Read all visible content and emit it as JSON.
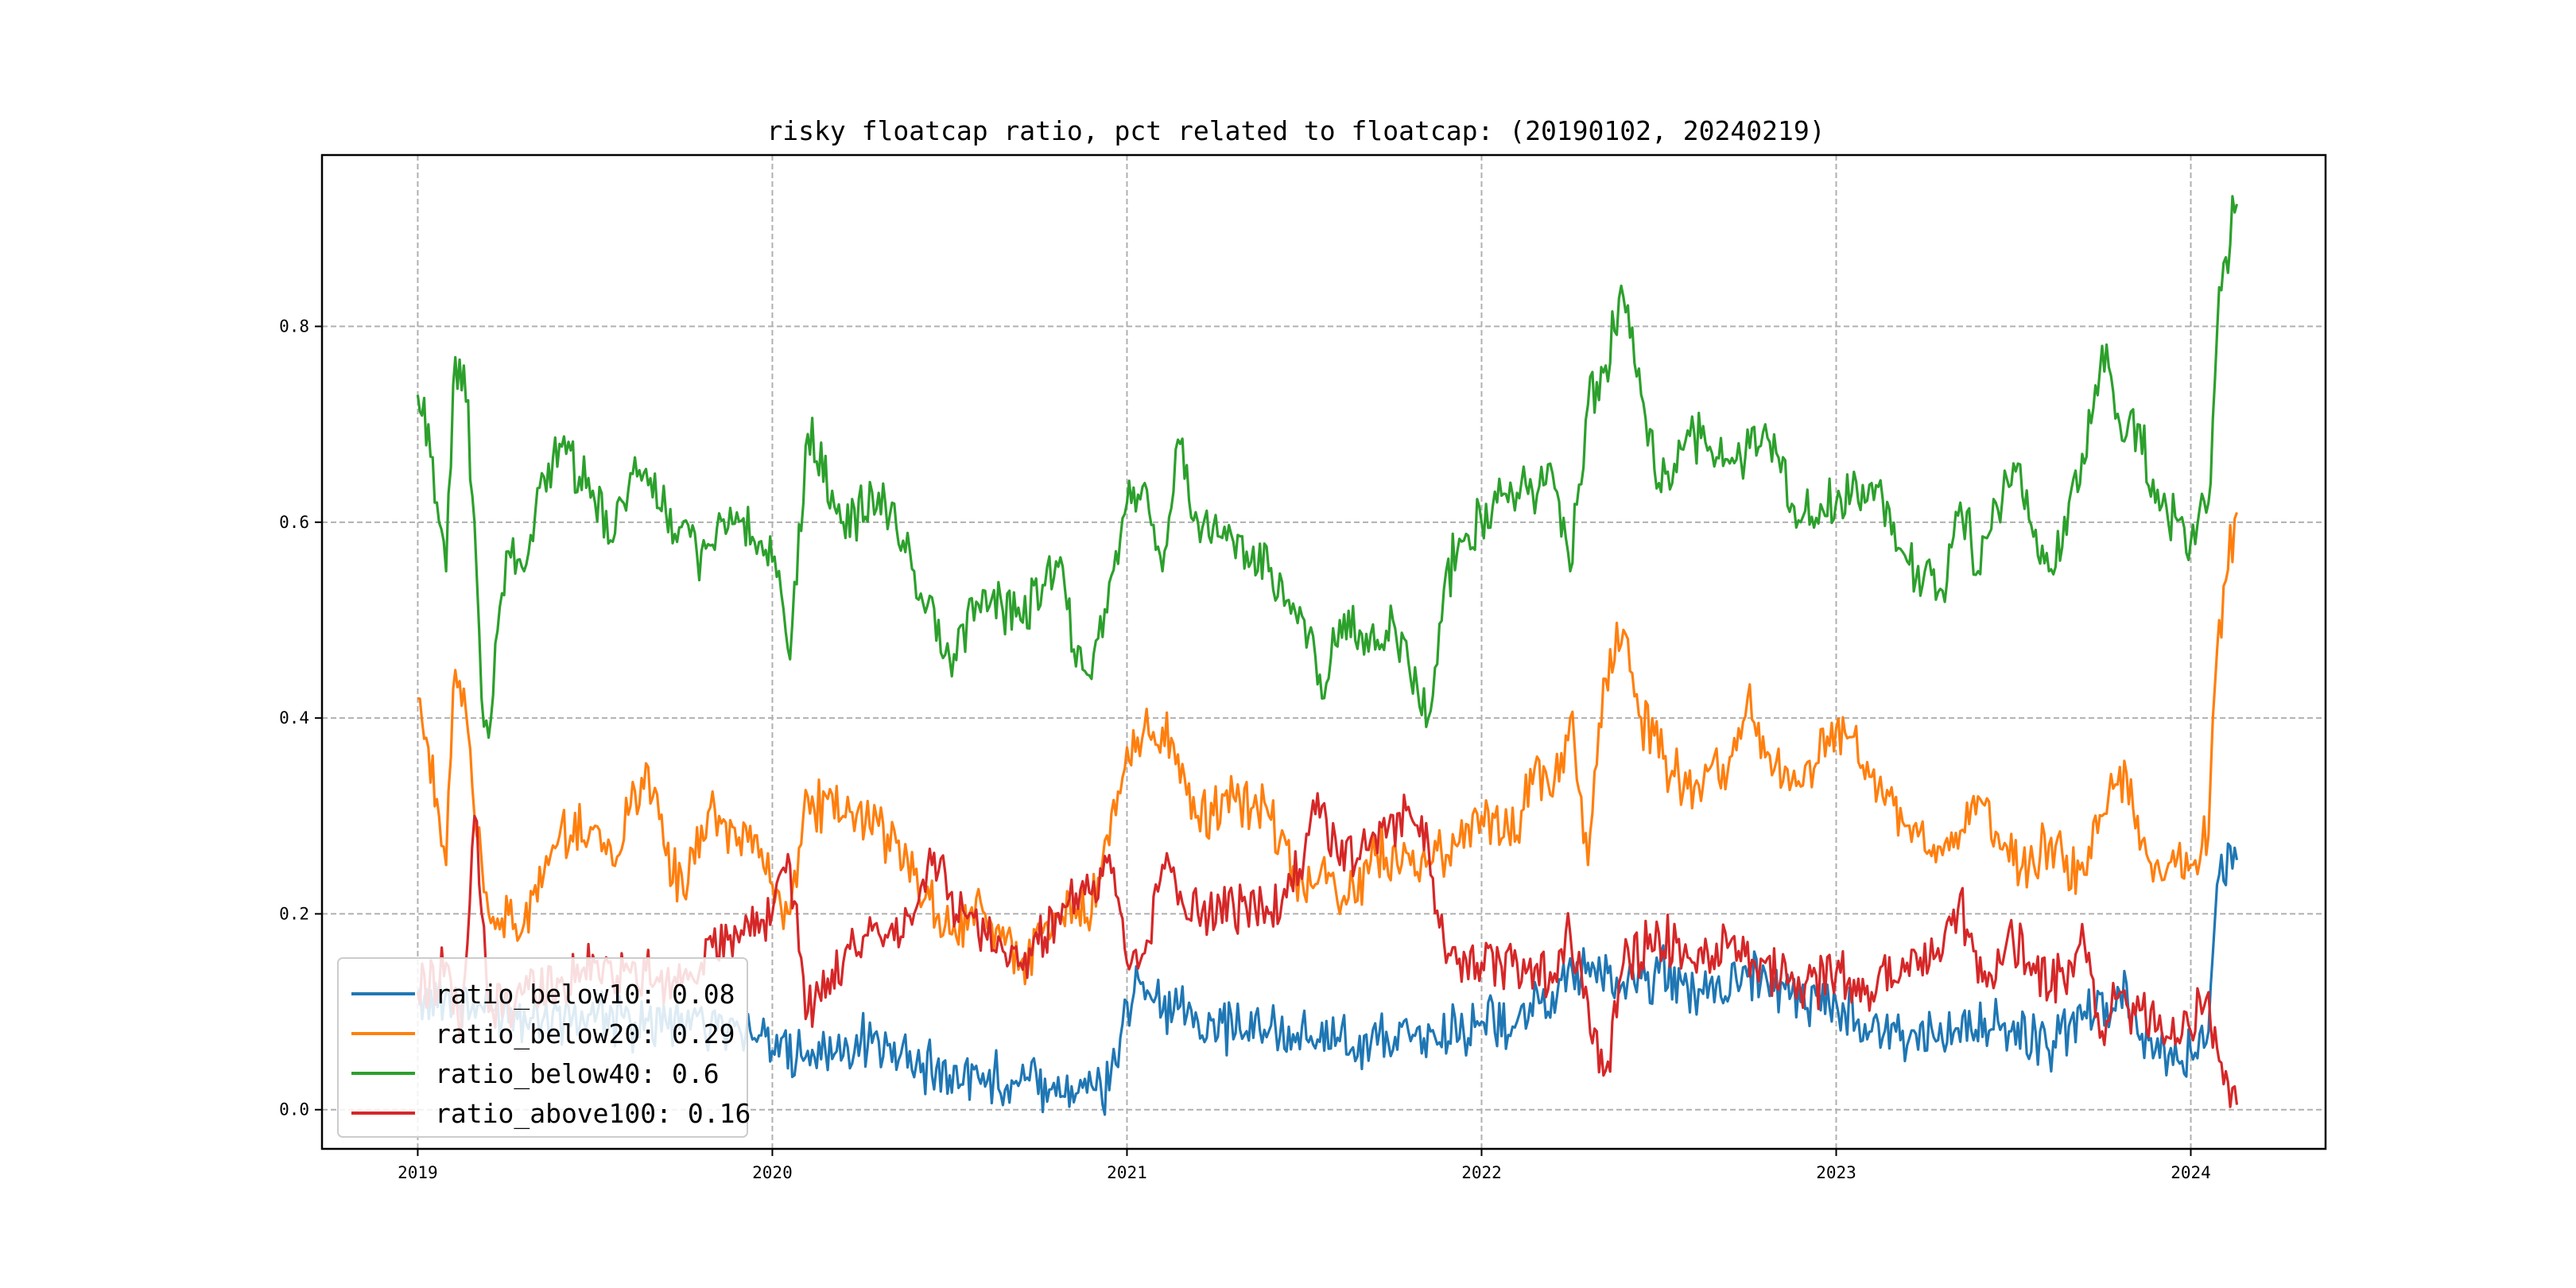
{
  "chart_data": {
    "type": "line",
    "title": "risky floatcap ratio, pct related to floatcap: (20190102, 20240219)",
    "xlabel": "",
    "ylabel": "",
    "x_range": [
      2018.73,
      2024.38
    ],
    "ylim": [
      -0.04,
      0.975
    ],
    "x_ticks": [
      {
        "value": 2019.0,
        "label": "2019"
      },
      {
        "value": 2020.0,
        "label": "2020"
      },
      {
        "value": 2021.0,
        "label": "2021"
      },
      {
        "value": 2022.0,
        "label": "2022"
      },
      {
        "value": 2023.0,
        "label": "2023"
      },
      {
        "value": 2024.0,
        "label": "2024"
      }
    ],
    "y_ticks": [
      {
        "value": 0.0,
        "label": "0.0"
      },
      {
        "value": 0.2,
        "label": "0.2"
      },
      {
        "value": 0.4,
        "label": "0.4"
      },
      {
        "value": 0.6,
        "label": "0.6"
      },
      {
        "value": 0.8,
        "label": "0.8"
      }
    ],
    "grid": true,
    "legend_position": "lower-left",
    "series": [
      {
        "name": "ratio_below10",
        "legend_label": "ratio_below10: 0.08",
        "color": "#1f77b4",
        "points": [
          [
            2019.0,
            0.12
          ],
          [
            2019.1,
            0.11
          ],
          [
            2019.2,
            0.1
          ],
          [
            2019.3,
            0.1
          ],
          [
            2019.5,
            0.09
          ],
          [
            2019.7,
            0.09
          ],
          [
            2019.9,
            0.09
          ],
          [
            2020.0,
            0.06
          ],
          [
            2020.1,
            0.06
          ],
          [
            2020.3,
            0.07
          ],
          [
            2020.5,
            0.035
          ],
          [
            2020.7,
            0.03
          ],
          [
            2020.9,
            0.025
          ],
          [
            2020.95,
            0.02
          ],
          [
            2021.0,
            0.11
          ],
          [
            2021.02,
            0.12
          ],
          [
            2021.2,
            0.09
          ],
          [
            2021.4,
            0.08
          ],
          [
            2021.6,
            0.07
          ],
          [
            2021.8,
            0.07
          ],
          [
            2022.0,
            0.09
          ],
          [
            2022.1,
            0.09
          ],
          [
            2022.2,
            0.12
          ],
          [
            2022.3,
            0.15
          ],
          [
            2022.4,
            0.13
          ],
          [
            2022.5,
            0.14
          ],
          [
            2022.6,
            0.12
          ],
          [
            2022.8,
            0.14
          ],
          [
            2022.9,
            0.11
          ],
          [
            2023.0,
            0.11
          ],
          [
            2023.1,
            0.08
          ],
          [
            2023.3,
            0.07
          ],
          [
            2023.5,
            0.09
          ],
          [
            2023.6,
            0.06
          ],
          [
            2023.7,
            0.1
          ],
          [
            2023.8,
            0.12
          ],
          [
            2023.9,
            0.06
          ],
          [
            2024.0,
            0.06
          ],
          [
            2024.05,
            0.08
          ],
          [
            2024.08,
            0.24
          ],
          [
            2024.13,
            0.255
          ]
        ]
      },
      {
        "name": "ratio_below20",
        "legend_label": "ratio_below20: 0.29",
        "color": "#ff7f0e",
        "points": [
          [
            2019.0,
            0.42
          ],
          [
            2019.03,
            0.37
          ],
          [
            2019.06,
            0.3
          ],
          [
            2019.08,
            0.25
          ],
          [
            2019.1,
            0.43
          ],
          [
            2019.13,
            0.43
          ],
          [
            2019.16,
            0.3
          ],
          [
            2019.2,
            0.2
          ],
          [
            2019.3,
            0.19
          ],
          [
            2019.4,
            0.28
          ],
          [
            2019.5,
            0.29
          ],
          [
            2019.55,
            0.25
          ],
          [
            2019.6,
            0.31
          ],
          [
            2019.65,
            0.35
          ],
          [
            2019.7,
            0.26
          ],
          [
            2019.75,
            0.22
          ],
          [
            2019.8,
            0.29
          ],
          [
            2019.85,
            0.3
          ],
          [
            2019.9,
            0.27
          ],
          [
            2019.95,
            0.28
          ],
          [
            2020.0,
            0.23
          ],
          [
            2020.05,
            0.2
          ],
          [
            2020.1,
            0.32
          ],
          [
            2020.2,
            0.3
          ],
          [
            2020.3,
            0.29
          ],
          [
            2020.4,
            0.24
          ],
          [
            2020.5,
            0.18
          ],
          [
            2020.6,
            0.2
          ],
          [
            2020.7,
            0.15
          ],
          [
            2020.8,
            0.2
          ],
          [
            2020.9,
            0.2
          ],
          [
            2021.0,
            0.37
          ],
          [
            2021.03,
            0.38
          ],
          [
            2021.1,
            0.39
          ],
          [
            2021.2,
            0.3
          ],
          [
            2021.3,
            0.32
          ],
          [
            2021.4,
            0.3
          ],
          [
            2021.5,
            0.22
          ],
          [
            2021.55,
            0.25
          ],
          [
            2021.6,
            0.2
          ],
          [
            2021.7,
            0.26
          ],
          [
            2021.8,
            0.25
          ],
          [
            2021.9,
            0.26
          ],
          [
            2022.0,
            0.3
          ],
          [
            2022.1,
            0.28
          ],
          [
            2022.15,
            0.35
          ],
          [
            2022.2,
            0.32
          ],
          [
            2022.25,
            0.4
          ],
          [
            2022.3,
            0.25
          ],
          [
            2022.35,
            0.44
          ],
          [
            2022.4,
            0.49
          ],
          [
            2022.45,
            0.4
          ],
          [
            2022.5,
            0.36
          ],
          [
            2022.6,
            0.33
          ],
          [
            2022.7,
            0.36
          ],
          [
            2022.75,
            0.42
          ],
          [
            2022.8,
            0.36
          ],
          [
            2022.9,
            0.33
          ],
          [
            2023.0,
            0.39
          ],
          [
            2023.1,
            0.34
          ],
          [
            2023.2,
            0.29
          ],
          [
            2023.3,
            0.26
          ],
          [
            2023.4,
            0.32
          ],
          [
            2023.5,
            0.25
          ],
          [
            2023.6,
            0.27
          ],
          [
            2023.7,
            0.24
          ],
          [
            2023.75,
            0.3
          ],
          [
            2023.8,
            0.35
          ],
          [
            2023.85,
            0.3
          ],
          [
            2023.9,
            0.25
          ],
          [
            2024.0,
            0.25
          ],
          [
            2024.05,
            0.28
          ],
          [
            2024.08,
            0.5
          ],
          [
            2024.13,
            0.61
          ]
        ]
      },
      {
        "name": "ratio_below40",
        "legend_label": "ratio_below40: 0.6",
        "color": "#2ca02c",
        "points": [
          [
            2019.0,
            0.73
          ],
          [
            2019.03,
            0.7
          ],
          [
            2019.06,
            0.6
          ],
          [
            2019.08,
            0.55
          ],
          [
            2019.1,
            0.74
          ],
          [
            2019.13,
            0.76
          ],
          [
            2019.16,
            0.6
          ],
          [
            2019.18,
            0.42
          ],
          [
            2019.2,
            0.38
          ],
          [
            2019.25,
            0.57
          ],
          [
            2019.3,
            0.55
          ],
          [
            2019.35,
            0.65
          ],
          [
            2019.4,
            0.68
          ],
          [
            2019.5,
            0.62
          ],
          [
            2019.55,
            0.58
          ],
          [
            2019.6,
            0.65
          ],
          [
            2019.7,
            0.61
          ],
          [
            2019.8,
            0.57
          ],
          [
            2019.9,
            0.61
          ],
          [
            2019.95,
            0.58
          ],
          [
            2020.0,
            0.56
          ],
          [
            2020.05,
            0.46
          ],
          [
            2020.1,
            0.69
          ],
          [
            2020.2,
            0.6
          ],
          [
            2020.3,
            0.63
          ],
          [
            2020.4,
            0.55
          ],
          [
            2020.5,
            0.46
          ],
          [
            2020.6,
            0.53
          ],
          [
            2020.7,
            0.5
          ],
          [
            2020.8,
            0.56
          ],
          [
            2020.85,
            0.47
          ],
          [
            2020.9,
            0.44
          ],
          [
            2021.0,
            0.62
          ],
          [
            2021.05,
            0.64
          ],
          [
            2021.1,
            0.55
          ],
          [
            2021.15,
            0.68
          ],
          [
            2021.2,
            0.6
          ],
          [
            2021.3,
            0.58
          ],
          [
            2021.4,
            0.55
          ],
          [
            2021.5,
            0.5
          ],
          [
            2021.55,
            0.42
          ],
          [
            2021.6,
            0.5
          ],
          [
            2021.7,
            0.47
          ],
          [
            2021.75,
            0.5
          ],
          [
            2021.8,
            0.44
          ],
          [
            2021.85,
            0.4
          ],
          [
            2021.9,
            0.55
          ],
          [
            2022.0,
            0.6
          ],
          [
            2022.1,
            0.63
          ],
          [
            2022.2,
            0.65
          ],
          [
            2022.25,
            0.55
          ],
          [
            2022.3,
            0.72
          ],
          [
            2022.35,
            0.76
          ],
          [
            2022.4,
            0.83
          ],
          [
            2022.45,
            0.73
          ],
          [
            2022.5,
            0.64
          ],
          [
            2022.6,
            0.69
          ],
          [
            2022.7,
            0.66
          ],
          [
            2022.8,
            0.7
          ],
          [
            2022.9,
            0.6
          ],
          [
            2023.0,
            0.62
          ],
          [
            2023.1,
            0.64
          ],
          [
            2023.2,
            0.56
          ],
          [
            2023.3,
            0.53
          ],
          [
            2023.35,
            0.62
          ],
          [
            2023.4,
            0.55
          ],
          [
            2023.5,
            0.66
          ],
          [
            2023.6,
            0.55
          ],
          [
            2023.7,
            0.66
          ],
          [
            2023.75,
            0.78
          ],
          [
            2023.8,
            0.7
          ],
          [
            2023.85,
            0.7
          ],
          [
            2023.9,
            0.62
          ],
          [
            2024.0,
            0.58
          ],
          [
            2024.05,
            0.62
          ],
          [
            2024.08,
            0.84
          ],
          [
            2024.13,
            0.925
          ]
        ]
      },
      {
        "name": "ratio_above100",
        "legend_label": "ratio_above100: 0.16",
        "color": "#d62728",
        "points": [
          [
            2019.0,
            0.12
          ],
          [
            2019.08,
            0.15
          ],
          [
            2019.12,
            0.07
          ],
          [
            2019.16,
            0.3
          ],
          [
            2019.2,
            0.1
          ],
          [
            2019.3,
            0.12
          ],
          [
            2019.4,
            0.13
          ],
          [
            2019.5,
            0.15
          ],
          [
            2019.6,
            0.14
          ],
          [
            2019.7,
            0.13
          ],
          [
            2019.8,
            0.15
          ],
          [
            2019.9,
            0.18
          ],
          [
            2020.0,
            0.2
          ],
          [
            2020.05,
            0.25
          ],
          [
            2020.1,
            0.1
          ],
          [
            2020.2,
            0.15
          ],
          [
            2020.3,
            0.18
          ],
          [
            2020.4,
            0.2
          ],
          [
            2020.45,
            0.25
          ],
          [
            2020.5,
            0.22
          ],
          [
            2020.6,
            0.18
          ],
          [
            2020.7,
            0.15
          ],
          [
            2020.8,
            0.2
          ],
          [
            2020.9,
            0.22
          ],
          [
            2020.95,
            0.26
          ],
          [
            2021.0,
            0.15
          ],
          [
            2021.05,
            0.16
          ],
          [
            2021.1,
            0.25
          ],
          [
            2021.2,
            0.2
          ],
          [
            2021.3,
            0.21
          ],
          [
            2021.4,
            0.2
          ],
          [
            2021.5,
            0.26
          ],
          [
            2021.55,
            0.31
          ],
          [
            2021.6,
            0.25
          ],
          [
            2021.7,
            0.28
          ],
          [
            2021.8,
            0.3
          ],
          [
            2021.85,
            0.27
          ],
          [
            2021.9,
            0.15
          ],
          [
            2022.0,
            0.15
          ],
          [
            2022.1,
            0.15
          ],
          [
            2022.2,
            0.13
          ],
          [
            2022.25,
            0.18
          ],
          [
            2022.3,
            0.11
          ],
          [
            2022.35,
            0.04
          ],
          [
            2022.4,
            0.15
          ],
          [
            2022.5,
            0.18
          ],
          [
            2022.6,
            0.15
          ],
          [
            2022.7,
            0.17
          ],
          [
            2022.8,
            0.15
          ],
          [
            2022.9,
            0.12
          ],
          [
            2023.0,
            0.14
          ],
          [
            2023.1,
            0.12
          ],
          [
            2023.2,
            0.15
          ],
          [
            2023.3,
            0.16
          ],
          [
            2023.35,
            0.22
          ],
          [
            2023.4,
            0.13
          ],
          [
            2023.5,
            0.17
          ],
          [
            2023.6,
            0.12
          ],
          [
            2023.7,
            0.17
          ],
          [
            2023.75,
            0.08
          ],
          [
            2023.8,
            0.12
          ],
          [
            2023.9,
            0.08
          ],
          [
            2024.0,
            0.08
          ],
          [
            2024.05,
            0.12
          ],
          [
            2024.08,
            0.05
          ],
          [
            2024.13,
            0.005
          ]
        ]
      }
    ]
  }
}
